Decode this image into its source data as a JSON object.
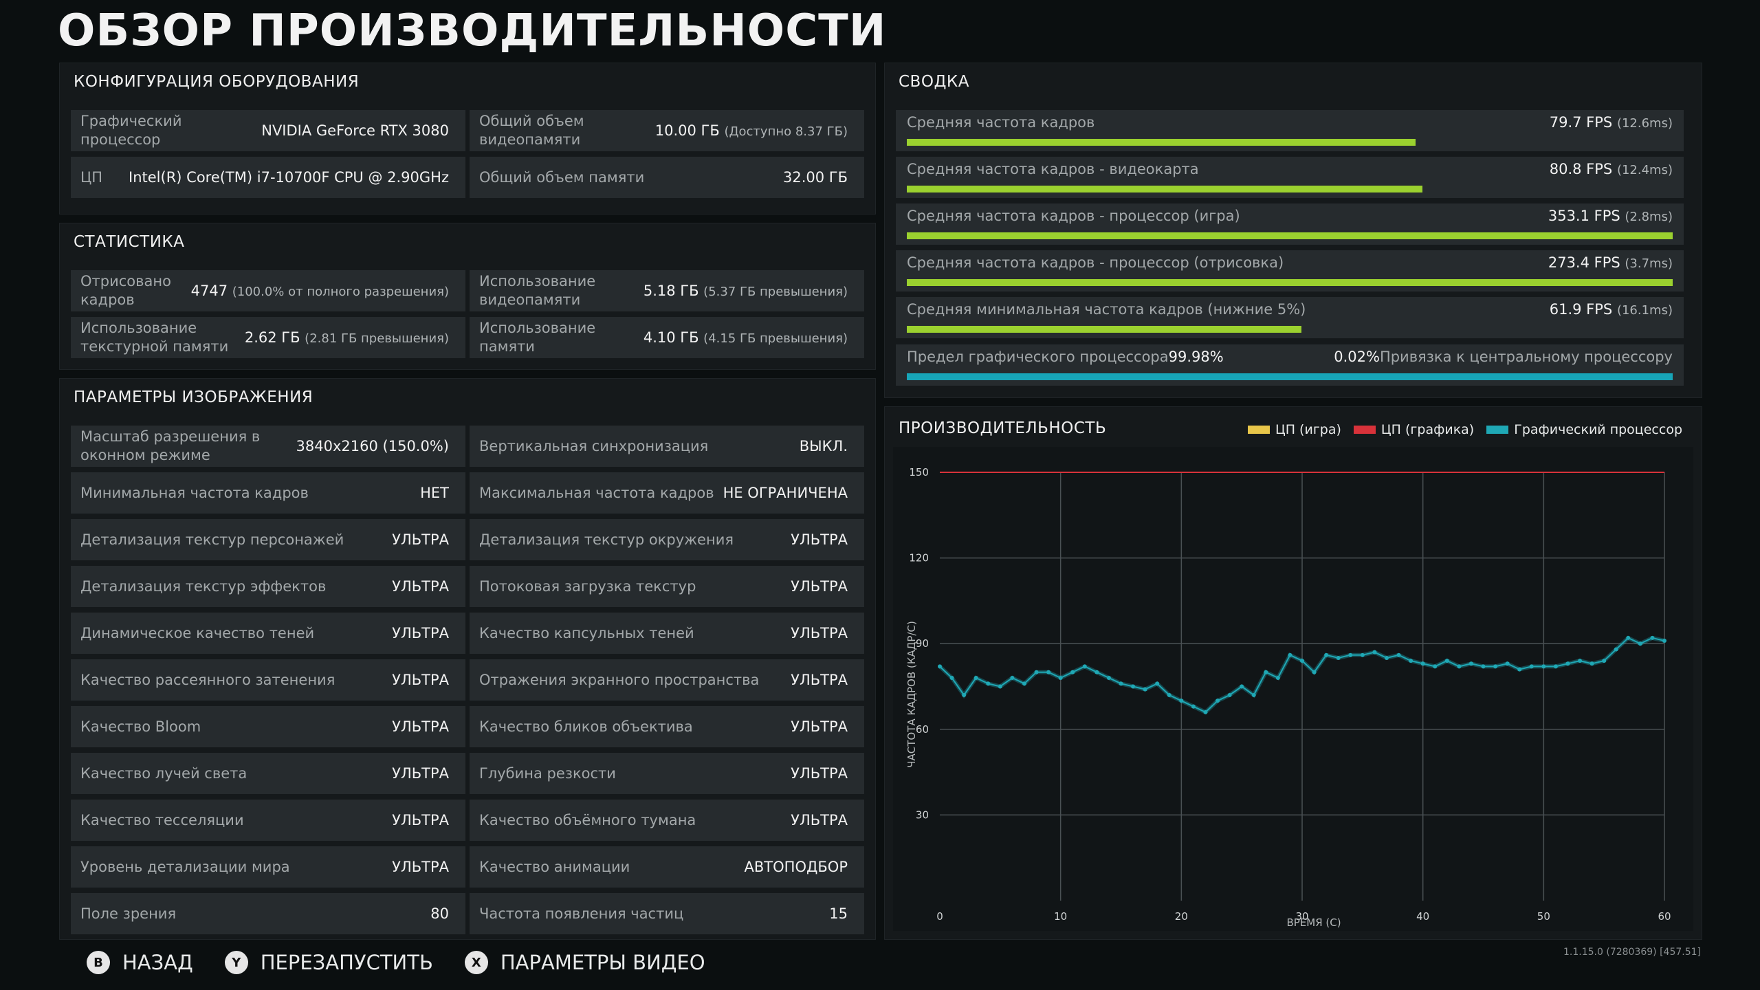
{
  "page_title": "ОБЗОР ПРОИЗВОДИТЕЛЬНОСТИ",
  "hardware": {
    "header": "КОНФИГУРАЦИЯ ОБОРУДОВАНИЯ",
    "gpu_label": "Графический процессор",
    "gpu_value": "NVIDIA GeForce RTX 3080",
    "vram_label": "Общий объем видеопамяти",
    "vram_value": "10.00 ГБ",
    "vram_sub": "(Доступно 8.37 ГБ)",
    "cpu_label": "ЦП",
    "cpu_value": "Intel(R) Core(TM) i7-10700F CPU @ 2.90GHz",
    "ram_label": "Общий объем памяти",
    "ram_value": "32.00 ГБ"
  },
  "stats": {
    "header": "СТАТИСТИКА",
    "frames_label": "Отрисовано кадров",
    "frames_value": "4747",
    "frames_sub": "(100.0% от полного разрешения)",
    "vram_use_label": "Использование видеопамяти",
    "vram_use_value": "5.18 ГБ",
    "vram_use_sub": "(5.37 ГБ превышения)",
    "tex_label": "Использование текстурной памяти",
    "tex_value": "2.62 ГБ",
    "tex_sub": "(2.81 ГБ превышения)",
    "mem_label": "Использование памяти",
    "mem_value": "4.10 ГБ",
    "mem_sub": "(4.15 ГБ превышения)"
  },
  "image_settings": {
    "header": "ПАРАМЕТРЫ ИЗОБРАЖЕНИЯ",
    "left": [
      {
        "label": "Масштаб разрешения в оконном режиме",
        "value": "3840x2160 (150.0%)"
      },
      {
        "label": "Минимальная частота кадров",
        "value": "НЕТ"
      },
      {
        "label": "Детализация текстур персонажей",
        "value": "УЛЬТРА"
      },
      {
        "label": "Детализация текстур эффектов",
        "value": "УЛЬТРА"
      },
      {
        "label": "Динамическое качество теней",
        "value": "УЛЬТРА"
      },
      {
        "label": "Качество рассеянного затенения",
        "value": "УЛЬТРА"
      },
      {
        "label": "Качество Bloom",
        "value": "УЛЬТРА"
      },
      {
        "label": "Качество лучей света",
        "value": "УЛЬТРА"
      },
      {
        "label": "Качество тесселяции",
        "value": "УЛЬТРА"
      },
      {
        "label": "Уровень детализации мира",
        "value": "УЛЬТРА"
      },
      {
        "label": "Поле зрения",
        "value": "80"
      }
    ],
    "right": [
      {
        "label": "Вертикальная синхронизация",
        "value": "ВЫКЛ."
      },
      {
        "label": "Максимальная частота кадров",
        "value": "НЕ ОГРАНИЧЕНА"
      },
      {
        "label": "Детализация текстур окружения",
        "value": "УЛЬТРА"
      },
      {
        "label": "Потоковая загрузка текстур",
        "value": "УЛЬТРА"
      },
      {
        "label": "Качество капсульных теней",
        "value": "УЛЬТРА"
      },
      {
        "label": "Отражения экранного пространства",
        "value": "УЛЬТРА"
      },
      {
        "label": "Качество бликов объектива",
        "value": "УЛЬТРА"
      },
      {
        "label": "Глубина резкости",
        "value": "УЛЬТРА"
      },
      {
        "label": "Качество объёмного тумана",
        "value": "УЛЬТРА"
      },
      {
        "label": "Качество анимации",
        "value": "АВТОПОДБОР"
      },
      {
        "label": "Частота появления частиц",
        "value": "15"
      }
    ]
  },
  "summary": {
    "header": "СВОДКА",
    "rows": [
      {
        "label": "Средняя частота кадров",
        "value": "79.7 FPS",
        "sub": "(12.6ms)",
        "fill": 0.664,
        "color": "#9bd12f"
      },
      {
        "label": "Средняя частота кадров - видеокарта",
        "value": "80.8 FPS",
        "sub": "(12.4ms)",
        "fill": 0.673,
        "color": "#9bd12f"
      },
      {
        "label": "Средняя частота кадров - процессор (игра)",
        "value": "353.1 FPS",
        "sub": "(2.8ms)",
        "fill": 1.0,
        "color": "#9bd12f"
      },
      {
        "label": "Средняя частота кадров - процессор (отрисовка)",
        "value": "273.4 FPS",
        "sub": "(3.7ms)",
        "fill": 1.0,
        "color": "#9bd12f"
      },
      {
        "label": "Средняя минимальная частота кадров (нижние 5%)",
        "value": "61.9 FPS",
        "sub": "(16.1ms)",
        "fill": 0.515,
        "color": "#9bd12f"
      }
    ],
    "limit": {
      "gpu_label": "Предел графического процессора",
      "gpu_value": "99.98%",
      "cpu_value": "0.02%",
      "cpu_label": "Привязка к центральному процессору",
      "gpu_fill": 0.9998,
      "gpu_color": "#17a5b8",
      "cpu_color": "#d6b84a"
    }
  },
  "performance": {
    "header": "ПРОИЗВОДИТЕЛЬНОСТЬ",
    "legend": [
      {
        "name": "ЦП (игра)",
        "color": "#e8c64a"
      },
      {
        "name": "ЦП (графика)",
        "color": "#d8323a"
      },
      {
        "name": "Графический процессор",
        "color": "#1fa8b5"
      }
    ]
  },
  "chart_data": {
    "type": "scatter",
    "title": "",
    "xlabel": "ВРЕМЯ (С)",
    "ylabel": "ЧАСТОТА КАДРОВ (КАДР/С)",
    "xlim": [
      0,
      60
    ],
    "ylim": [
      0,
      150
    ],
    "xticks": [
      "0",
      "10",
      "20",
      "30",
      "40",
      "50",
      "60"
    ],
    "yticks": [
      "30",
      "60",
      "90",
      "120",
      "150"
    ],
    "grid": true,
    "reference_line": {
      "y": 150,
      "color": "#d8323a"
    },
    "series": [
      {
        "name": "Графический процессор",
        "color": "#1fa8b5",
        "x": [
          0,
          1,
          2,
          3,
          4,
          5,
          6,
          7,
          8,
          9,
          10,
          11,
          12,
          13,
          14,
          15,
          16,
          17,
          18,
          19,
          20,
          21,
          22,
          23,
          24,
          25,
          26,
          27,
          28,
          29,
          30,
          31,
          32,
          33,
          34,
          35,
          36,
          37,
          38,
          39,
          40,
          41,
          42,
          43,
          44,
          45,
          46,
          47,
          48,
          49,
          50,
          51,
          52,
          53,
          54,
          55,
          56,
          57,
          58,
          59,
          60
        ],
        "y": [
          82,
          78,
          72,
          78,
          76,
          75,
          78,
          76,
          80,
          80,
          78,
          80,
          82,
          80,
          78,
          76,
          75,
          74,
          76,
          72,
          70,
          68,
          66,
          70,
          72,
          75,
          72,
          80,
          78,
          86,
          84,
          80,
          86,
          85,
          86,
          86,
          87,
          85,
          86,
          84,
          83,
          82,
          84,
          82,
          83,
          82,
          82,
          83,
          81,
          82,
          82,
          82,
          83,
          84,
          83,
          84,
          88,
          92,
          90,
          92,
          91
        ]
      }
    ]
  },
  "footer": {
    "back_key": "B",
    "back_label": "НАЗАД",
    "restart_key": "Y",
    "restart_label": "ПЕРЕЗАПУСТИТЬ",
    "video_key": "X",
    "video_label": "ПАРАМЕТРЫ ВИДЕО"
  },
  "version": "1.1.15.0 (7280369) [457.51]"
}
